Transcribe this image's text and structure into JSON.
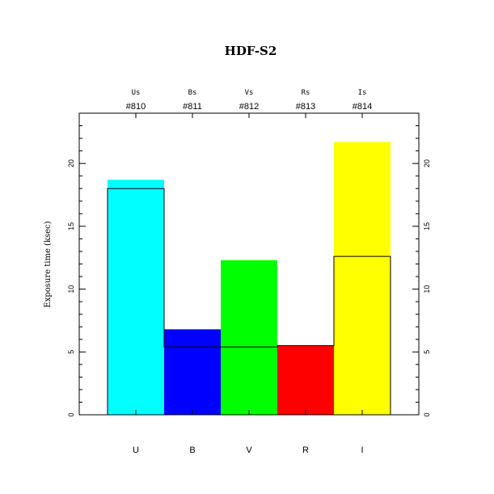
{
  "chart_data": {
    "type": "bar",
    "title": "HDF-S2",
    "ylabel": "Exposure time (ksec)",
    "ylim": [
      0,
      24
    ],
    "yticks": [
      0,
      5,
      10,
      15,
      20
    ],
    "categories": [
      "U",
      "B",
      "V",
      "R",
      "I"
    ],
    "top_names": [
      "Us",
      "Bs",
      "Vs",
      "Rs",
      "Is"
    ],
    "top_ids": [
      "#810",
      "#811",
      "#812",
      "#813",
      "#814"
    ],
    "colors": [
      "#00ffff",
      "#0000ff",
      "#00ff00",
      "#ff0000",
      "#ffff00"
    ],
    "values": [
      18.7,
      6.8,
      12.3,
      5.5,
      21.7
    ],
    "outline_values": [
      18.0,
      5.4,
      5.4,
      5.5,
      12.6
    ]
  }
}
